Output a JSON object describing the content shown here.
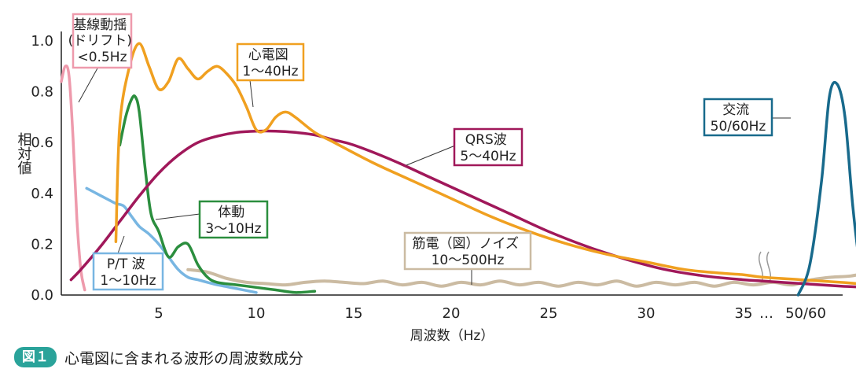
{
  "caption": {
    "badge": "図１",
    "text": "心電図に含まれる波形の周波数成分"
  },
  "chart_data": {
    "type": "line",
    "xlabel": "周波数（Hz）",
    "ylabel": "相対値",
    "xlim": [
      0,
      42
    ],
    "ylim": [
      0,
      1.0
    ],
    "x_ticks": [
      "5",
      "10",
      "15",
      "20",
      "25",
      "30",
      "35"
    ],
    "x_break_labels": [
      "…",
      "50/60"
    ],
    "y_ticks": [
      "0.0",
      "0.2",
      "0.4",
      "0.6",
      "0.8",
      "1.0"
    ],
    "grid": false,
    "legend": "annotations",
    "series": [
      {
        "key": "baseline",
        "lines": [
          "基線動揺",
          "(ドリフト)",
          "<0.5Hz"
        ],
        "color": "#ee9aac",
        "x": [
          0.0,
          0.2,
          0.4,
          0.6,
          0.8,
          1.0,
          1.2
        ],
        "y": [
          0.84,
          0.9,
          0.86,
          0.62,
          0.3,
          0.1,
          0.02
        ]
      },
      {
        "key": "ecg",
        "lines": [
          "心電図",
          "1〜40Hz"
        ],
        "color": "#f0a020",
        "x": [
          2.8,
          3.0,
          3.5,
          4.0,
          4.5,
          5.0,
          5.5,
          6.0,
          6.5,
          7.0,
          7.5,
          8.0,
          8.5,
          9.0,
          9.5,
          10.0,
          10.5,
          11.0,
          11.5,
          12.0,
          13.0,
          14.0,
          16.0,
          18.0,
          20.0,
          22.0,
          24.0,
          26.0,
          28.0,
          30.0,
          32.0,
          34.0,
          35.0,
          36.0,
          38.0,
          40.0,
          41.5
        ],
        "y": [
          0.21,
          0.67,
          0.9,
          0.99,
          0.9,
          0.81,
          0.84,
          0.93,
          0.89,
          0.85,
          0.88,
          0.9,
          0.87,
          0.82,
          0.74,
          0.65,
          0.65,
          0.7,
          0.72,
          0.7,
          0.64,
          0.6,
          0.52,
          0.45,
          0.38,
          0.31,
          0.25,
          0.2,
          0.16,
          0.13,
          0.1,
          0.085,
          0.08,
          0.07,
          0.06,
          0.05,
          0.04
        ]
      },
      {
        "key": "qrs",
        "lines": [
          "QRS波",
          "5〜40Hz"
        ],
        "color": "#a0185a",
        "x": [
          0.5,
          1.0,
          2.0,
          3.0,
          4.0,
          5.0,
          6.0,
          7.0,
          8.0,
          9.0,
          10.0,
          11.0,
          12.0,
          13.0,
          14.0,
          15.0,
          17.0,
          19.0,
          21.0,
          23.0,
          25.0,
          27.0,
          29.0,
          31.0,
          33.0,
          35.0,
          36.0,
          38.0,
          40.0,
          41.5
        ],
        "y": [
          0.06,
          0.1,
          0.19,
          0.29,
          0.39,
          0.48,
          0.55,
          0.6,
          0.625,
          0.64,
          0.645,
          0.645,
          0.64,
          0.63,
          0.61,
          0.59,
          0.53,
          0.46,
          0.39,
          0.32,
          0.25,
          0.19,
          0.14,
          0.1,
          0.075,
          0.06,
          0.055,
          0.045,
          0.035,
          0.03
        ]
      },
      {
        "key": "body",
        "lines": [
          "体動",
          "3〜10Hz"
        ],
        "color": "#2b8e3e",
        "x": [
          3.0,
          3.3,
          3.6,
          3.8,
          4.0,
          4.3,
          4.6,
          5.0,
          5.5,
          6.0,
          6.5,
          7.0,
          7.5,
          8.0,
          9.0,
          10.0,
          11.0,
          12.0,
          13.0
        ],
        "y": [
          0.59,
          0.7,
          0.77,
          0.78,
          0.72,
          0.5,
          0.32,
          0.25,
          0.15,
          0.19,
          0.2,
          0.12,
          0.07,
          0.05,
          0.04,
          0.03,
          0.02,
          0.01,
          0.015
        ]
      },
      {
        "key": "pt",
        "lines": [
          "P/T 波",
          "1〜10Hz"
        ],
        "color": "#78b6e2",
        "x": [
          1.3,
          1.8,
          2.3,
          2.8,
          3.2,
          3.6,
          4.0,
          4.5,
          5.0,
          5.5,
          6.0,
          6.5,
          7.0,
          7.5,
          8.0,
          9.0,
          10.0
        ],
        "y": [
          0.42,
          0.4,
          0.38,
          0.36,
          0.35,
          0.31,
          0.27,
          0.24,
          0.2,
          0.15,
          0.1,
          0.07,
          0.06,
          0.05,
          0.04,
          0.025,
          0.01
        ]
      },
      {
        "key": "emg",
        "lines": [
          "筋電（図）ノイズ",
          "10〜500Hz"
        ],
        "color": "#cbbba2",
        "x": [
          6.5,
          7.5,
          8.5,
          9.5,
          10.5,
          11.5,
          12.5,
          13.5,
          14.5,
          15.5,
          16.5,
          17.5,
          18.5,
          19.5,
          20.5,
          21.5,
          22.5,
          23.5,
          24.5,
          25.5,
          26.5,
          27.5,
          28.5,
          29.5,
          30.5,
          31.5,
          32.5,
          33.5,
          34.5,
          35.5,
          36.5,
          37.5,
          38.5,
          39.5,
          40.5,
          41.5
        ],
        "y": [
          0.1,
          0.09,
          0.065,
          0.05,
          0.045,
          0.04,
          0.05,
          0.055,
          0.05,
          0.045,
          0.055,
          0.04,
          0.05,
          0.035,
          0.05,
          0.04,
          0.055,
          0.04,
          0.05,
          0.035,
          0.05,
          0.04,
          0.055,
          0.035,
          0.05,
          0.04,
          0.05,
          0.035,
          0.05,
          0.04,
          0.05,
          0.04,
          0.06,
          0.07,
          0.075,
          0.09
        ]
      },
      {
        "key": "mains",
        "lines": [
          "交流",
          "50/60Hz"
        ],
        "color": "#186a8c",
        "x": [
          37.8,
          38.4,
          39.0,
          39.4,
          39.8,
          40.2,
          40.6,
          41.0,
          41.4
        ],
        "y": [
          0.0,
          0.12,
          0.45,
          0.78,
          0.83,
          0.7,
          0.35,
          0.1,
          0.0
        ]
      }
    ]
  }
}
